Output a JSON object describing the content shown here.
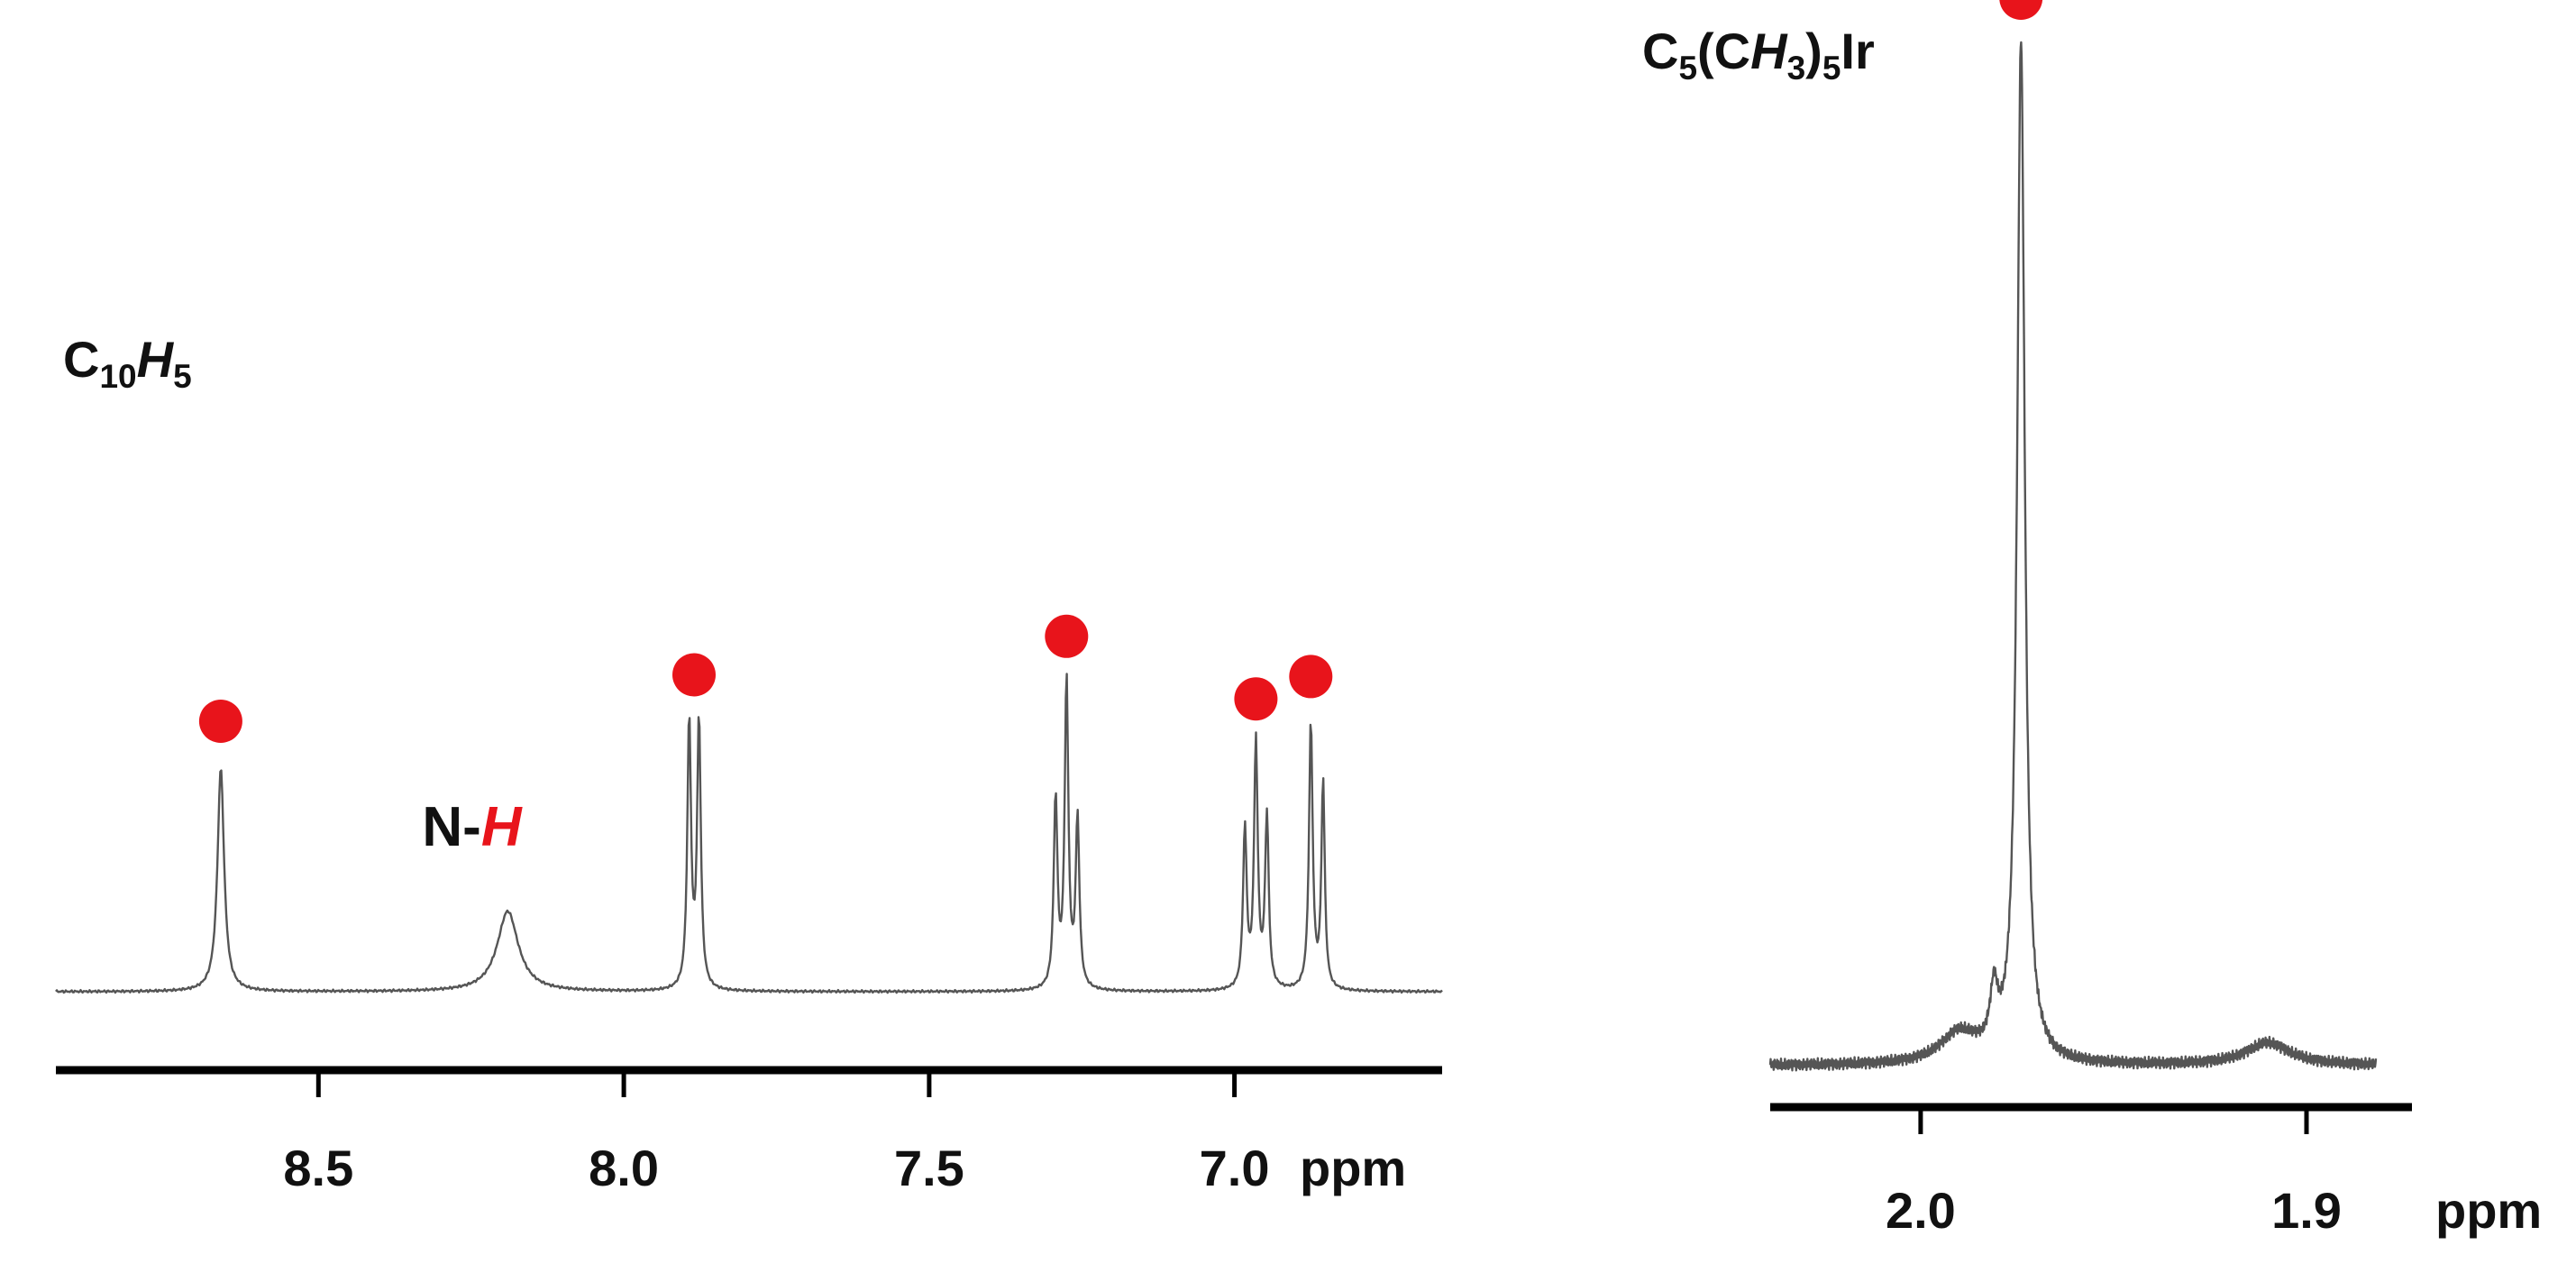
{
  "chart_data": [
    {
      "type": "line",
      "label": {
        "parts": [
          {
            "text": "C",
            "sub": false,
            "italic": false,
            "red": false
          },
          {
            "text": "10",
            "sub": true,
            "italic": false,
            "red": false
          },
          {
            "text": "H",
            "sub": false,
            "italic": true,
            "red": false
          },
          {
            "text": "5",
            "sub": true,
            "italic": false,
            "red": false
          }
        ]
      },
      "xlabel": "ppm",
      "x_reversed": true,
      "xlim": [
        8.93,
        6.66
      ],
      "ticks": [
        8.5,
        8.0,
        7.5,
        7.0
      ],
      "tick_labels": [
        "8.5",
        "8.0",
        "7.5",
        "7.0"
      ],
      "peaks": [
        {
          "ppm": 8.66,
          "height": 1.0,
          "marker": "red-dot"
        },
        {
          "ppm": 8.19,
          "height": 0.36,
          "marker": "N-H"
        },
        {
          "ppm": 7.885,
          "height": 1.22,
          "marker": "red-dot"
        },
        {
          "ppm": 7.275,
          "height": 1.38,
          "marker": "red-dot"
        },
        {
          "ppm": 6.965,
          "height": 1.1,
          "marker": "red-dot"
        },
        {
          "ppm": 6.875,
          "height": 1.2,
          "marker": "red-dot"
        }
      ],
      "annotation": {
        "parts": [
          {
            "text": "N-",
            "sub": false,
            "italic": false,
            "red": false
          },
          {
            "text": "H",
            "sub": false,
            "italic": true,
            "red": true
          }
        ]
      }
    },
    {
      "type": "line",
      "label": {
        "parts": [
          {
            "text": "C",
            "sub": false,
            "italic": false,
            "red": false
          },
          {
            "text": "5",
            "sub": true,
            "italic": false,
            "red": false
          },
          {
            "text": "(C",
            "sub": false,
            "italic": false,
            "red": false
          },
          {
            "text": "H",
            "sub": false,
            "italic": true,
            "red": false
          },
          {
            "text": "3",
            "sub": true,
            "italic": false,
            "red": false
          },
          {
            "text": ")",
            "sub": false,
            "italic": false,
            "red": false
          },
          {
            "text": "5",
            "sub": true,
            "italic": false,
            "red": false
          },
          {
            "text": "Ir",
            "sub": false,
            "italic": false,
            "red": false
          }
        ]
      },
      "xlabel": "ppm",
      "x_reversed": true,
      "xlim": [
        2.039,
        1.882
      ],
      "ticks": [
        2.0,
        1.9
      ],
      "tick_labels": [
        "2.0",
        "1.9"
      ],
      "peaks": [
        {
          "ppm": 1.974,
          "height": 1.0,
          "marker": "red-dot"
        }
      ]
    }
  ],
  "colors": {
    "marker": "#e8141b",
    "trace": "#555555",
    "axis": "#000000",
    "text": "#111111"
  }
}
